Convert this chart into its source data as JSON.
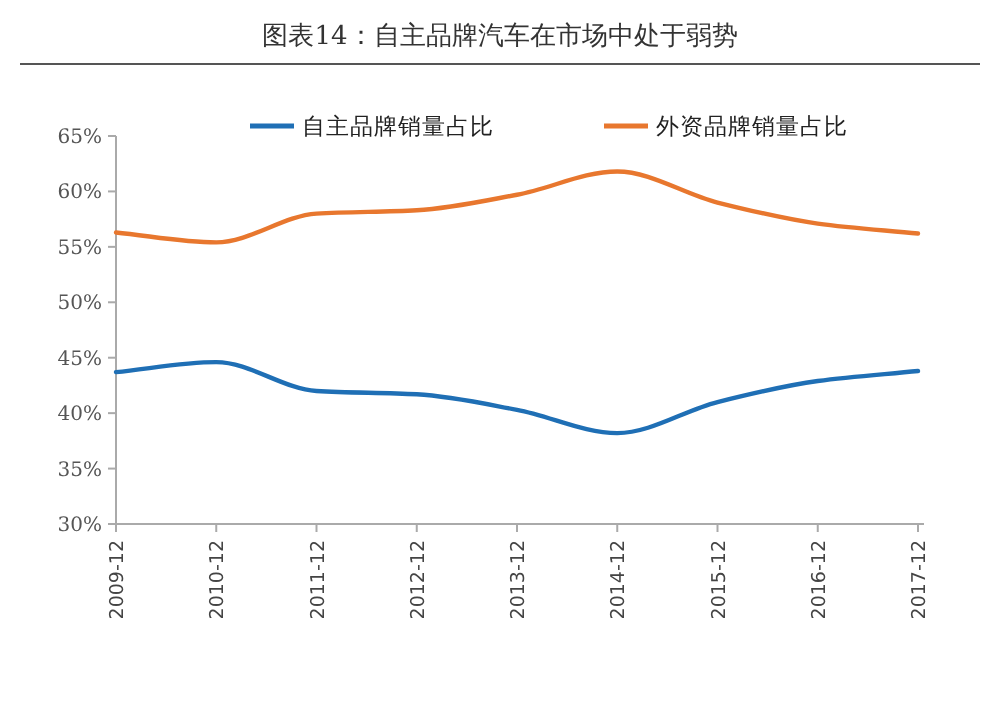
{
  "chart_data": {
    "type": "line",
    "title": "图表14：自主品牌汽车在市场中处于弱势",
    "categories": [
      "2009-12",
      "2010-12",
      "2011-12",
      "2012-12",
      "2013-12",
      "2014-12",
      "2015-12",
      "2016-12",
      "2017-12"
    ],
    "series": [
      {
        "name": "自主品牌销量占比",
        "color": "#1f6fb5",
        "values": [
          43.7,
          44.6,
          42.0,
          41.7,
          40.3,
          38.2,
          41.0,
          42.9,
          43.8
        ]
      },
      {
        "name": "外资品牌销量占比",
        "color": "#e8772e",
        "values": [
          56.3,
          55.4,
          58.0,
          58.3,
          59.7,
          61.8,
          59.0,
          57.1,
          56.2
        ]
      }
    ],
    "ylim": [
      30,
      65
    ],
    "yticks": [
      {
        "value": 30,
        "label": "30%"
      },
      {
        "value": 35,
        "label": "35%"
      },
      {
        "value": 40,
        "label": "40%"
      },
      {
        "value": 45,
        "label": "45%"
      },
      {
        "value": 50,
        "label": "50%"
      },
      {
        "value": 55,
        "label": "55%"
      },
      {
        "value": 60,
        "label": "60%"
      },
      {
        "value": 65,
        "label": "65%"
      }
    ],
    "legend": "top"
  }
}
